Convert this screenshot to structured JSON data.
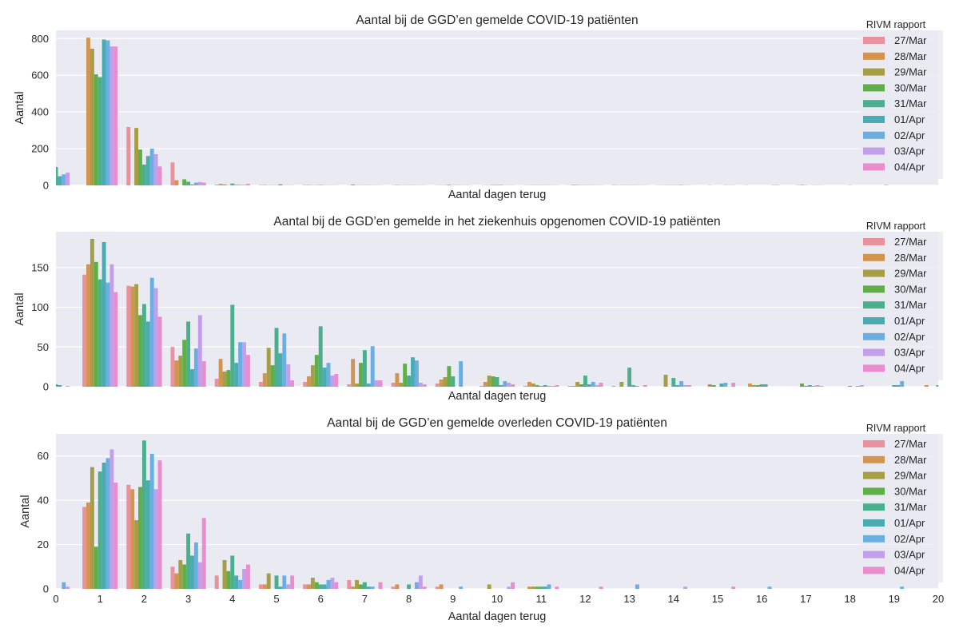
{
  "chart_data": [
    {
      "type": "bar",
      "title": "Aantal bij de GGD’en gemelde COVID-19 patiënten",
      "xlabel": "Aantal dagen terug",
      "ylabel": "Aantal",
      "ylim": [
        0,
        845
      ],
      "yticks": [
        0,
        200,
        400,
        600,
        800
      ],
      "show_xticks": false,
      "grid": true,
      "legend": {
        "title": "RIVM rapport",
        "placement": "top-right"
      },
      "categories": [
        0,
        1,
        2,
        3,
        4,
        5,
        6,
        7,
        8,
        9,
        10,
        11,
        12,
        13,
        14,
        15,
        16,
        17,
        18,
        19,
        20
      ],
      "series": [
        {
          "name": "27/Mar",
          "values": [
            0,
            0,
            318,
            125,
            4,
            2,
            2,
            1,
            1,
            1,
            0,
            1,
            1,
            2,
            1,
            0,
            1,
            0,
            0,
            0,
            0
          ]
        },
        {
          "name": "28/Mar",
          "values": [
            0,
            805,
            0,
            28,
            8,
            2,
            2,
            5,
            2,
            1,
            1,
            1,
            3,
            1,
            1,
            0,
            0,
            0,
            0,
            0,
            0
          ]
        },
        {
          "name": "29/Mar",
          "values": [
            0,
            745,
            313,
            0,
            5,
            1,
            1,
            1,
            1,
            1,
            1,
            1,
            2,
            1,
            1,
            1,
            0,
            1,
            0,
            2,
            0
          ]
        },
        {
          "name": "30/Mar",
          "values": [
            0,
            605,
            195,
            33,
            1,
            1,
            1,
            1,
            1,
            3,
            2,
            1,
            1,
            1,
            1,
            0,
            0,
            2,
            0,
            0,
            0
          ]
        },
        {
          "name": "31/Mar",
          "values": [
            100,
            590,
            113,
            20,
            10,
            1,
            2,
            1,
            1,
            1,
            2,
            1,
            1,
            1,
            1,
            0,
            0,
            1,
            1,
            0,
            0
          ]
        },
        {
          "name": "01/Apr",
          "values": [
            50,
            795,
            160,
            5,
            3,
            6,
            1,
            1,
            1,
            1,
            2,
            1,
            1,
            1,
            1,
            0,
            0,
            0,
            0,
            0,
            0
          ]
        },
        {
          "name": "02/Apr",
          "values": [
            60,
            790,
            200,
            15,
            3,
            1,
            1,
            1,
            1,
            1,
            1,
            1,
            1,
            1,
            2,
            1,
            0,
            1,
            0,
            0,
            0
          ]
        },
        {
          "name": "03/Apr",
          "values": [
            70,
            757,
            170,
            18,
            3,
            1,
            1,
            1,
            1,
            1,
            1,
            1,
            1,
            1,
            1,
            1,
            2,
            1,
            0,
            0,
            0
          ]
        },
        {
          "name": "04/Apr",
          "values": [
            0,
            757,
            103,
            15,
            8,
            1,
            1,
            1,
            1,
            1,
            1,
            1,
            1,
            1,
            1,
            1,
            2,
            1,
            0,
            0,
            0
          ]
        }
      ]
    },
    {
      "type": "bar",
      "title": "Aantal bij de GGD’en gemelde in het ziekenhuis opgenomen COVID-19 patiënten",
      "xlabel": "Aantal dagen terug",
      "ylabel": "Aantal",
      "ylim": [
        0,
        195
      ],
      "yticks": [
        0,
        50,
        100,
        150
      ],
      "show_xticks": false,
      "grid": true,
      "legend": {
        "title": "RIVM rapport",
        "placement": "top-right"
      },
      "categories": [
        0,
        1,
        2,
        3,
        4,
        5,
        6,
        7,
        8,
        9,
        10,
        11,
        12,
        13,
        14,
        15,
        16,
        17,
        18,
        19,
        20
      ],
      "series": [
        {
          "name": "27/Mar",
          "values": [
            0,
            141,
            127,
            50,
            10,
            6,
            6,
            3,
            5,
            4,
            1,
            1,
            1,
            1,
            0,
            0,
            0,
            0,
            0,
            0,
            0
          ]
        },
        {
          "name": "28/Mar",
          "values": [
            0,
            154,
            126,
            33,
            35,
            17,
            13,
            35,
            17,
            9,
            6,
            6,
            1,
            0,
            0,
            0,
            4,
            0,
            0,
            0,
            2
          ]
        },
        {
          "name": "29/Mar",
          "values": [
            0,
            186,
            129,
            39,
            19,
            49,
            27,
            4,
            5,
            12,
            14,
            4,
            6,
            6,
            15,
            3,
            2,
            0,
            0,
            0,
            0
          ]
        },
        {
          "name": "30/Mar",
          "values": [
            0,
            157,
            90,
            59,
            21,
            27,
            40,
            30,
            29,
            26,
            13,
            2,
            3,
            0,
            0,
            2,
            2,
            4,
            0,
            0,
            0
          ]
        },
        {
          "name": "31/Mar",
          "values": [
            3,
            135,
            104,
            82,
            103,
            74,
            76,
            46,
            14,
            13,
            12,
            1,
            14,
            24,
            11,
            0,
            3,
            1,
            1,
            2,
            2
          ]
        },
        {
          "name": "01/Apr",
          "values": [
            2,
            182,
            82,
            22,
            30,
            42,
            24,
            4,
            37,
            0,
            2,
            2,
            3,
            2,
            2,
            4,
            3,
            2,
            0,
            2,
            0
          ]
        },
        {
          "name": "02/Apr",
          "values": [
            0,
            131,
            137,
            48,
            56,
            67,
            30,
            51,
            33,
            32,
            7,
            1,
            6,
            1,
            7,
            5,
            0,
            1,
            1,
            7,
            0
          ]
        },
        {
          "name": "03/Apr",
          "values": [
            1,
            154,
            124,
            90,
            56,
            28,
            14,
            8,
            5,
            0,
            5,
            1,
            2,
            0,
            2,
            0,
            0,
            2,
            2,
            0,
            0
          ]
        },
        {
          "name": "04/Apr",
          "values": [
            0,
            119,
            88,
            32,
            40,
            8,
            16,
            8,
            3,
            0,
            3,
            2,
            5,
            2,
            2,
            5,
            0,
            1,
            0,
            0,
            0
          ]
        }
      ]
    },
    {
      "type": "bar",
      "title": "Aantal bij de GGD’en gemelde overleden COVID-19 patiënten",
      "xlabel": "Aantal dagen terug",
      "ylabel": "Aantal",
      "ylim": [
        0,
        70
      ],
      "yticks": [
        0,
        20,
        40,
        60
      ],
      "xticks": [
        0,
        1,
        2,
        3,
        4,
        5,
        6,
        7,
        8,
        9,
        10,
        11,
        12,
        13,
        14,
        15,
        16,
        17,
        18,
        19,
        20
      ],
      "show_xticks": true,
      "grid": true,
      "legend": {
        "title": "RIVM rapport",
        "placement": "top-right"
      },
      "categories": [
        0,
        1,
        2,
        3,
        4,
        5,
        6,
        7,
        8,
        9,
        10,
        11,
        12,
        13,
        14,
        15,
        16,
        17,
        18,
        19,
        20
      ],
      "series": [
        {
          "name": "27/Mar",
          "values": [
            0,
            37,
            47,
            10,
            6,
            2,
            2,
            4,
            1,
            1,
            0,
            0,
            0,
            0,
            0,
            0,
            0,
            0,
            0,
            0,
            0
          ]
        },
        {
          "name": "28/Mar",
          "values": [
            0,
            39,
            45,
            7,
            0,
            2,
            2,
            1,
            2,
            2,
            0,
            1,
            0,
            0,
            0,
            0,
            0,
            0,
            0,
            0,
            0
          ]
        },
        {
          "name": "29/Mar",
          "values": [
            0,
            55,
            31,
            13,
            13,
            7,
            5,
            4,
            0,
            0,
            2,
            1,
            0,
            0,
            0,
            0,
            0,
            0,
            0,
            0,
            0
          ]
        },
        {
          "name": "30/Mar",
          "values": [
            0,
            19,
            46,
            11,
            8,
            0,
            3,
            2,
            0,
            0,
            0,
            1,
            0,
            0,
            0,
            0,
            0,
            0,
            0,
            0,
            0
          ]
        },
        {
          "name": "31/Mar",
          "values": [
            0,
            53,
            67,
            25,
            15,
            6,
            2,
            3,
            2,
            0,
            0,
            1,
            0,
            0,
            0,
            0,
            0,
            0,
            0,
            0,
            0
          ]
        },
        {
          "name": "01/Apr",
          "values": [
            0,
            57,
            49,
            15,
            6,
            1,
            2,
            1,
            0,
            0,
            0,
            1,
            0,
            0,
            0,
            0,
            0,
            0,
            0,
            0,
            0
          ]
        },
        {
          "name": "02/Apr",
          "values": [
            3,
            59,
            61,
            21,
            4,
            6,
            4,
            1,
            3,
            1,
            0,
            2,
            0,
            2,
            0,
            0,
            1,
            0,
            0,
            1,
            0
          ]
        },
        {
          "name": "03/Apr",
          "values": [
            1,
            63,
            45,
            12,
            9,
            2,
            5,
            0,
            6,
            0,
            1,
            0,
            0,
            0,
            1,
            0,
            0,
            0,
            0,
            0,
            0
          ]
        },
        {
          "name": "04/Apr",
          "values": [
            0,
            48,
            58,
            32,
            11,
            6,
            3,
            3,
            1,
            0,
            3,
            1,
            1,
            0,
            0,
            1,
            0,
            0,
            0,
            0,
            0
          ]
        }
      ]
    }
  ],
  "colors": [
    "#e8929e",
    "#d3944f",
    "#a69d47",
    "#5fae47",
    "#4bae8c",
    "#4aabb3",
    "#6aaee2",
    "#c39eea",
    "#e98dcf"
  ],
  "style": {
    "plot_background": "#eaeaf2",
    "grid_color": "#ffffff"
  }
}
